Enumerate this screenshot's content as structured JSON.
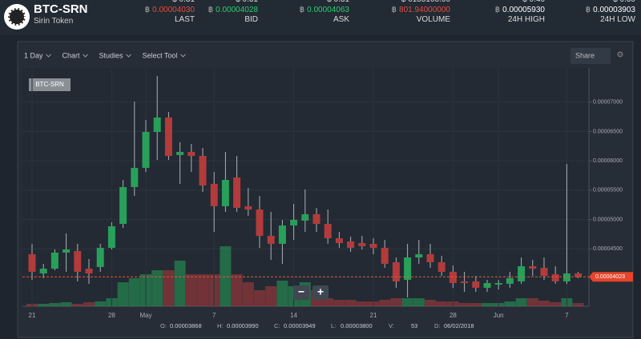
{
  "header": {
    "pair": "BTC-SRN",
    "name": "Sirin Token",
    "currency_symbol": "฿",
    "stats": [
      {
        "usd": "$ 0.31",
        "value": "0.00004030",
        "label": "LAST",
        "color": "#e74c3c"
      },
      {
        "usd": "$ 0.31",
        "value": "0.00004028",
        "label": "BID",
        "color": "#2ecc71"
      },
      {
        "usd": "$ 0.31",
        "value": "0.00004063",
        "label": "ASK",
        "color": "#2ecc71"
      },
      {
        "usd": "$ 6155108.00",
        "value": "801.94000000",
        "label": "VOLUME",
        "color": "#e74c3c"
      },
      {
        "usd": "$ 0.46",
        "value": "0.00005930",
        "label": "24H HIGH",
        "color": "#ffffff"
      },
      {
        "usd": "$ 0.30",
        "value": "0.00003903",
        "label": "24H LOW",
        "color": "#ffffff"
      }
    ]
  },
  "toolbar": {
    "items": [
      "1 Day",
      "Chart",
      "Studies",
      "Select Tool"
    ],
    "share": "Share"
  },
  "chart_data": {
    "type": "candlestick",
    "series_label": "BTC-SRN",
    "categories": [
      "21",
      null,
      null,
      null,
      null,
      null,
      null,
      "28",
      null,
      null,
      "May",
      null,
      null,
      null,
      null,
      null,
      "7",
      null,
      null,
      null,
      null,
      null,
      null,
      "14",
      null,
      null,
      null,
      null,
      null,
      null,
      "21",
      null,
      null,
      null,
      null,
      null,
      null,
      "28",
      null,
      null,
      null,
      "Jun",
      null,
      null,
      null,
      null,
      null,
      "7",
      null
    ],
    "open": [
      4.409e-05,
      4.082e-05,
      4.163e-05,
      4.436e-05,
      4.463e-05,
      4.163e-05,
      4.191e-05,
      4.518e-05,
      4.926e-05,
      5.553e-05,
      5.88e-05,
      6.492e-05,
      6.738e-05,
      6.098e-05,
      6.152e-05,
      6.084e-05,
      5.607e-05,
      5.226e-05,
      5.716e-05,
      5.226e-05,
      5.171e-05,
      4.722e-05,
      4.586e-05,
      4.899e-05,
      4.981e-05,
      5.09e-05,
      4.926e-05,
      4.681e-05,
      4.627e-05,
      4.599e-05,
      4.586e-05,
      4.518e-05,
      4.272e-05,
      3.973e-05,
      4.354e-05,
      4.409e-05,
      4.272e-05,
      4.109e-05,
      3.946e-05,
      3.946e-05,
      3.837e-05,
      3.891e-05,
      3.905e-05,
      3.946e-05,
      4.204e-05,
      4.177e-05,
      4.068e-05,
      3.946e-05,
      4.082e-05
    ],
    "high": [
      4.586e-05,
      4.245e-05,
      4.49e-05,
      4.763e-05,
      4.586e-05,
      4.327e-05,
      4.586e-05,
      4.953e-05,
      5.675e-05,
      7.01e-05,
      6.697e-05,
      7.446e-05,
      6.833e-05,
      6.315e-05,
      6.288e-05,
      6.22e-05,
      5.811e-05,
      6.152e-05,
      6.084e-05,
      5.539e-05,
      5.403e-05,
      5.13e-05,
      4.994e-05,
      5.267e-05,
      5.512e-05,
      5.199e-05,
      5.171e-05,
      4.79e-05,
      4.708e-05,
      4.722e-05,
      4.681e-05,
      4.654e-05,
      4.354e-05,
      4.586e-05,
      4.654e-05,
      4.586e-05,
      4.381e-05,
      4.218e-05,
      4.109e-05,
      4.041e-05,
      3.973e-05,
      3.973e-05,
      4.109e-05,
      4.354e-05,
      4.313e-05,
      4.354e-05,
      4.204e-05,
      5.947e-05,
      4.109e-05
    ],
    "low": [
      3.973e-05,
      4e-05,
      4.136e-05,
      4.109e-05,
      3.946e-05,
      3.905e-05,
      4.109e-05,
      4.49e-05,
      4.858e-05,
      5.403e-05,
      5.811e-05,
      6.016e-05,
      6.016e-05,
      5.607e-05,
      5.811e-05,
      5.471e-05,
      4.79e-05,
      5.13e-05,
      5.13e-05,
      5.062e-05,
      4.518e-05,
      4.313e-05,
      4.245e-05,
      4.654e-05,
      4.79e-05,
      4.79e-05,
      4.586e-05,
      4.518e-05,
      4.45e-05,
      4.49e-05,
      4.409e-05,
      4.177e-05,
      3.837e-05,
      3.673e-05,
      4.245e-05,
      4.177e-05,
      4.041e-05,
      3.837e-05,
      3.768e-05,
      3.768e-05,
      3.768e-05,
      3.809e-05,
      3.837e-05,
      3.905e-05,
      4.041e-05,
      3.973e-05,
      3.905e-05,
      3.905e-05,
      4e-05
    ],
    "close": [
      4.109e-05,
      4.163e-05,
      4.436e-05,
      4.49e-05,
      4.109e-05,
      4.082e-05,
      4.518e-05,
      4.885e-05,
      5.553e-05,
      5.88e-05,
      6.492e-05,
      6.738e-05,
      6.084e-05,
      6.152e-05,
      6.084e-05,
      5.58e-05,
      5.226e-05,
      5.675e-05,
      5.199e-05,
      5.171e-05,
      4.722e-05,
      4.586e-05,
      4.899e-05,
      4.994e-05,
      5.09e-05,
      4.926e-05,
      4.681e-05,
      4.599e-05,
      4.518e-05,
      4.545e-05,
      4.518e-05,
      4.245e-05,
      3.946e-05,
      4.354e-05,
      4.409e-05,
      4.272e-05,
      4.109e-05,
      3.918e-05,
      3.918e-05,
      3.837e-05,
      3.918e-05,
      3.918e-05,
      4e-05,
      4.204e-05,
      4.163e-05,
      4.041e-05,
      3.946e-05,
      4.082e-05,
      4.023e-05
    ],
    "volume": [
      3,
      3,
      4,
      5,
      3,
      5,
      6,
      10,
      30,
      35,
      40,
      45,
      45,
      57,
      40,
      40,
      40,
      75,
      40,
      30,
      20,
      25,
      32,
      25,
      30,
      20,
      10,
      8,
      8,
      6,
      6,
      8,
      10,
      10,
      10,
      8,
      6,
      6,
      4,
      4,
      4,
      4,
      6,
      10,
      10,
      7,
      5,
      10,
      4
    ],
    "up_color": "#27a05a",
    "down_color": "#b23b3b",
    "ylim": [
      3.523e-05,
      7.582e-05
    ],
    "yticks": [
      {
        "value": 4.5e-05,
        "label": "0.00004500"
      },
      {
        "value": 5e-05,
        "label": "0.00005000"
      },
      {
        "value": 5.5e-05,
        "label": "0.00005500"
      },
      {
        "value": 6e-05,
        "label": "0.00006000"
      },
      {
        "value": 6.5e-05,
        "label": "0.00006500"
      },
      {
        "value": 7e-05,
        "label": "0.00007000"
      }
    ],
    "current_price": {
      "value": 4.023e-05,
      "label": "0.00004023"
    },
    "grid": true,
    "zoom": [
      "−",
      "+"
    ]
  },
  "footer": [
    {
      "key": "O:",
      "value": "0.00003868"
    },
    {
      "key": "H:",
      "value": "0.00003990"
    },
    {
      "key": "C:",
      "value": "0.00003949"
    },
    {
      "key": "L:",
      "value": "0.00003800"
    },
    {
      "key": "V:",
      "value": "53"
    },
    {
      "key": "D:",
      "value": "06/02/2018"
    }
  ]
}
